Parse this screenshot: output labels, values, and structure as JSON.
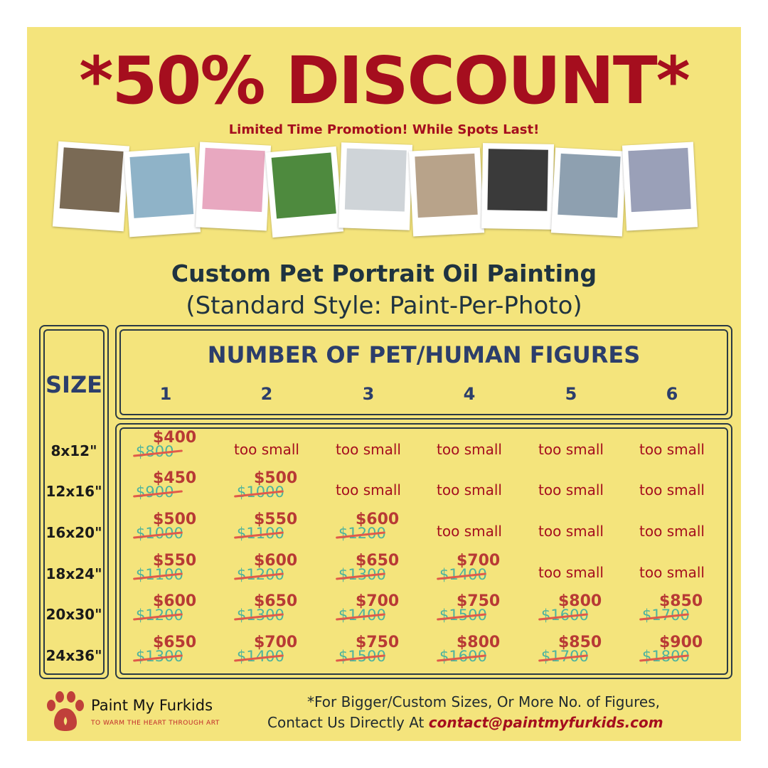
{
  "header": {
    "title": "*50% DISCOUNT*",
    "promo": "Limited Time Promotion! While Spots Last!"
  },
  "product": {
    "headline": "Custom Pet Portrait Oil Painting",
    "subhead": "(Standard Style: Paint-Per-Photo)"
  },
  "table": {
    "size_label": "SIZE",
    "figures_label": "NUMBER OF PET/HUMAN FIGURES",
    "columns": [
      "1",
      "2",
      "3",
      "4",
      "5",
      "6"
    ],
    "too_small": "too small",
    "rows": [
      {
        "size": "8x12\"",
        "cells": [
          {
            "sale": "$400",
            "original": "$800"
          },
          null,
          null,
          null,
          null,
          null
        ]
      },
      {
        "size": "12x16\"",
        "cells": [
          {
            "sale": "$450",
            "original": "$900"
          },
          {
            "sale": "$500",
            "original": "$1000"
          },
          null,
          null,
          null,
          null
        ]
      },
      {
        "size": "16x20\"",
        "cells": [
          {
            "sale": "$500",
            "original": "$1000"
          },
          {
            "sale": "$550",
            "original": "$1100"
          },
          {
            "sale": "$600",
            "original": "$1200"
          },
          null,
          null,
          null
        ]
      },
      {
        "size": "18x24\"",
        "cells": [
          {
            "sale": "$550",
            "original": "$1100"
          },
          {
            "sale": "$600",
            "original": "$1200"
          },
          {
            "sale": "$650",
            "original": "$1300"
          },
          {
            "sale": "$700",
            "original": "$1400"
          },
          null,
          null
        ]
      },
      {
        "size": "20x30\"",
        "cells": [
          {
            "sale": "$600",
            "original": "$1200"
          },
          {
            "sale": "$650",
            "original": "$1300"
          },
          {
            "sale": "$700",
            "original": "$1400"
          },
          {
            "sale": "$750",
            "original": "$1500"
          },
          {
            "sale": "$800",
            "original": "$1600"
          },
          {
            "sale": "$850",
            "original": "$1700"
          }
        ]
      },
      {
        "size": "24x36\"",
        "cells": [
          {
            "sale": "$650",
            "original": "$1300"
          },
          {
            "sale": "$700",
            "original": "$1400"
          },
          {
            "sale": "$750",
            "original": "$1500"
          },
          {
            "sale": "$800",
            "original": "$1600"
          },
          {
            "sale": "$850",
            "original": "$1700"
          },
          {
            "sale": "$900",
            "original": "$1800"
          }
        ]
      }
    ]
  },
  "footer": {
    "brand": "Paint My Furkids",
    "tagline": "TO WARM THE HEART THROUGH ART",
    "note_line1": "*For Bigger/Custom Sizes, Or More No. of Figures,",
    "note_line2": "Contact Us Directly At ",
    "email": "contact@paintmyfurkids.com"
  },
  "colors": {
    "background": "#f4e47c",
    "accent_red": "#a50e1e",
    "navy": "#2c3e6b",
    "teal": "#4db39e"
  }
}
